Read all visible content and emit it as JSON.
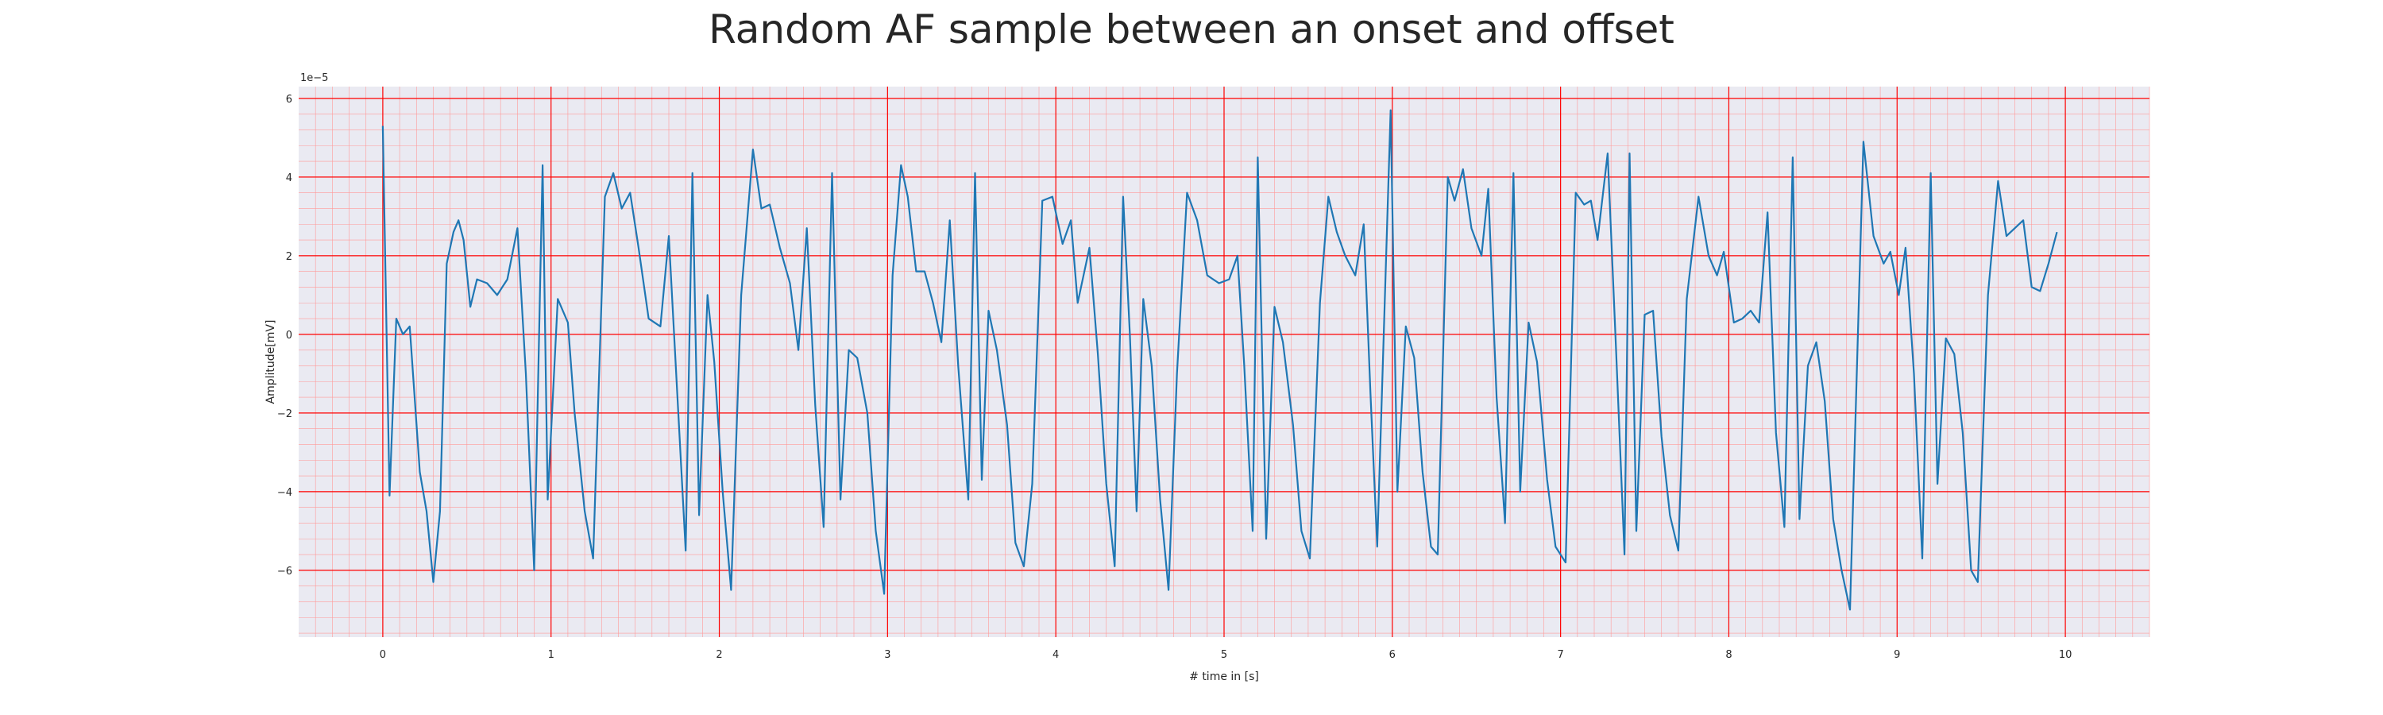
{
  "chart_data": {
    "type": "line",
    "title": "Random AF sample between an onset and offset",
    "xlabel": "# time in [s]",
    "ylabel": "Amplitude[mV]",
    "y_offset_label": "1e−5",
    "xlim": [
      -0.5,
      10.5
    ],
    "ylim": [
      -7.7,
      6.3
    ],
    "x_ticks": [
      0,
      1,
      2,
      3,
      4,
      5,
      6,
      7,
      8,
      9,
      10
    ],
    "y_ticks": [
      6,
      4,
      2,
      0,
      -2,
      -4,
      -6
    ],
    "x_tick_labels": [
      "0",
      "1",
      "2",
      "3",
      "4",
      "5",
      "6",
      "7",
      "8",
      "9",
      "10"
    ],
    "y_tick_labels": [
      "6",
      "4",
      "2",
      "0",
      "−2",
      "−4",
      "−6"
    ],
    "grid": true,
    "colors": {
      "background": "#eaeaf2",
      "major_grid": "#ff0000",
      "minor_grid": "#ff9999",
      "line": "#1f77b4"
    },
    "series": [
      {
        "values": [
          [
            0.0,
            5.3
          ],
          [
            0.04,
            -4.1
          ],
          [
            0.08,
            0.4
          ],
          [
            0.12,
            0.0
          ],
          [
            0.16,
            0.2
          ],
          [
            0.22,
            -3.5
          ],
          [
            0.26,
            -4.5
          ],
          [
            0.3,
            -6.3
          ],
          [
            0.34,
            -4.5
          ],
          [
            0.38,
            1.8
          ],
          [
            0.42,
            2.6
          ],
          [
            0.45,
            2.9
          ],
          [
            0.48,
            2.4
          ],
          [
            0.52,
            0.7
          ],
          [
            0.56,
            1.4
          ],
          [
            0.62,
            1.3
          ],
          [
            0.68,
            1.0
          ],
          [
            0.74,
            1.4
          ],
          [
            0.8,
            2.7
          ],
          [
            0.85,
            -1.0
          ],
          [
            0.9,
            -6.0
          ],
          [
            0.95,
            4.3
          ],
          [
            0.98,
            -4.2
          ],
          [
            1.04,
            0.9
          ],
          [
            1.1,
            0.3
          ],
          [
            1.14,
            -2.0
          ],
          [
            1.2,
            -4.5
          ],
          [
            1.25,
            -5.7
          ],
          [
            1.32,
            3.5
          ],
          [
            1.37,
            4.1
          ],
          [
            1.42,
            3.2
          ],
          [
            1.47,
            3.6
          ],
          [
            1.52,
            2.2
          ],
          [
            1.58,
            0.4
          ],
          [
            1.65,
            0.2
          ],
          [
            1.7,
            2.5
          ],
          [
            1.75,
            -1.5
          ],
          [
            1.8,
            -5.5
          ],
          [
            1.84,
            4.1
          ],
          [
            1.88,
            -4.6
          ],
          [
            1.93,
            1.0
          ],
          [
            1.97,
            -0.7
          ],
          [
            2.02,
            -4.0
          ],
          [
            2.07,
            -6.5
          ],
          [
            2.13,
            1.0
          ],
          [
            2.2,
            4.7
          ],
          [
            2.25,
            3.2
          ],
          [
            2.3,
            3.3
          ],
          [
            2.36,
            2.2
          ],
          [
            2.42,
            1.3
          ],
          [
            2.47,
            -0.4
          ],
          [
            2.52,
            2.7
          ],
          [
            2.57,
            -1.8
          ],
          [
            2.62,
            -4.9
          ],
          [
            2.67,
            4.1
          ],
          [
            2.72,
            -4.2
          ],
          [
            2.77,
            -0.4
          ],
          [
            2.82,
            -0.6
          ],
          [
            2.88,
            -2.0
          ],
          [
            2.93,
            -5.0
          ],
          [
            2.98,
            -6.6
          ],
          [
            3.03,
            1.5
          ],
          [
            3.08,
            4.3
          ],
          [
            3.12,
            3.5
          ],
          [
            3.17,
            1.6
          ],
          [
            3.22,
            1.6
          ],
          [
            3.27,
            0.8
          ],
          [
            3.32,
            -0.2
          ],
          [
            3.37,
            2.9
          ],
          [
            3.42,
            -0.8
          ],
          [
            3.48,
            -4.2
          ],
          [
            3.52,
            4.1
          ],
          [
            3.56,
            -3.7
          ],
          [
            3.6,
            0.6
          ],
          [
            3.65,
            -0.4
          ],
          [
            3.71,
            -2.3
          ],
          [
            3.76,
            -5.3
          ],
          [
            3.81,
            -5.9
          ],
          [
            3.86,
            -3.8
          ],
          [
            3.92,
            3.4
          ],
          [
            3.98,
            3.5
          ],
          [
            4.04,
            2.3
          ],
          [
            4.09,
            2.9
          ],
          [
            4.13,
            0.8
          ],
          [
            4.2,
            2.2
          ],
          [
            4.25,
            -0.5
          ],
          [
            4.3,
            -3.8
          ],
          [
            4.35,
            -5.9
          ],
          [
            4.4,
            3.5
          ],
          [
            4.44,
            0.0
          ],
          [
            4.48,
            -4.5
          ],
          [
            4.52,
            0.9
          ],
          [
            4.57,
            -0.8
          ],
          [
            4.62,
            -4.2
          ],
          [
            4.67,
            -6.5
          ],
          [
            4.72,
            -1.0
          ],
          [
            4.78,
            3.6
          ],
          [
            4.84,
            2.9
          ],
          [
            4.9,
            1.5
          ],
          [
            4.97,
            1.3
          ],
          [
            5.03,
            1.4
          ],
          [
            5.08,
            2.0
          ],
          [
            5.12,
            -0.8
          ],
          [
            5.17,
            -5.0
          ],
          [
            5.2,
            4.5
          ],
          [
            5.25,
            -5.2
          ],
          [
            5.3,
            0.7
          ],
          [
            5.35,
            -0.2
          ],
          [
            5.41,
            -2.3
          ],
          [
            5.46,
            -5.0
          ],
          [
            5.51,
            -5.7
          ],
          [
            5.57,
            0.8
          ],
          [
            5.62,
            3.5
          ],
          [
            5.67,
            2.6
          ],
          [
            5.72,
            2.0
          ],
          [
            5.78,
            1.5
          ],
          [
            5.83,
            2.8
          ],
          [
            5.87,
            -1.5
          ],
          [
            5.91,
            -5.4
          ],
          [
            5.99,
            5.7
          ],
          [
            6.03,
            -4.0
          ],
          [
            6.08,
            0.2
          ],
          [
            6.13,
            -0.6
          ],
          [
            6.18,
            -3.5
          ],
          [
            6.23,
            -5.4
          ],
          [
            6.27,
            -5.6
          ],
          [
            6.33,
            4.0
          ],
          [
            6.37,
            3.4
          ],
          [
            6.42,
            4.2
          ],
          [
            6.47,
            2.7
          ],
          [
            6.53,
            2.0
          ],
          [
            6.57,
            3.7
          ],
          [
            6.62,
            -1.6
          ],
          [
            6.67,
            -4.8
          ],
          [
            6.72,
            4.1
          ],
          [
            6.76,
            -4.0
          ],
          [
            6.81,
            0.3
          ],
          [
            6.86,
            -0.7
          ],
          [
            6.92,
            -3.7
          ],
          [
            6.97,
            -5.4
          ],
          [
            7.03,
            -5.8
          ],
          [
            7.09,
            3.6
          ],
          [
            7.14,
            3.3
          ],
          [
            7.18,
            3.4
          ],
          [
            7.22,
            2.4
          ],
          [
            7.28,
            4.6
          ],
          [
            7.33,
            -0.4
          ],
          [
            7.38,
            -5.6
          ],
          [
            7.41,
            4.6
          ],
          [
            7.45,
            -5.0
          ],
          [
            7.5,
            0.5
          ],
          [
            7.55,
            0.6
          ],
          [
            7.6,
            -2.6
          ],
          [
            7.65,
            -4.6
          ],
          [
            7.7,
            -5.5
          ],
          [
            7.75,
            0.9
          ],
          [
            7.82,
            3.5
          ],
          [
            7.88,
            2.0
          ],
          [
            7.93,
            1.5
          ],
          [
            7.97,
            2.1
          ],
          [
            8.03,
            0.3
          ],
          [
            8.08,
            0.4
          ],
          [
            8.13,
            0.6
          ],
          [
            8.18,
            0.3
          ],
          [
            8.23,
            3.1
          ],
          [
            8.28,
            -2.5
          ],
          [
            8.33,
            -4.9
          ],
          [
            8.38,
            4.5
          ],
          [
            8.42,
            -4.7
          ],
          [
            8.47,
            -0.8
          ],
          [
            8.52,
            -0.2
          ],
          [
            8.57,
            -1.7
          ],
          [
            8.62,
            -4.7
          ],
          [
            8.67,
            -6.0
          ],
          [
            8.72,
            -7.0
          ],
          [
            8.8,
            4.9
          ],
          [
            8.86,
            2.5
          ],
          [
            8.92,
            1.8
          ],
          [
            8.96,
            2.1
          ],
          [
            9.01,
            1.0
          ],
          [
            9.05,
            2.2
          ],
          [
            9.1,
            -1.0
          ],
          [
            9.15,
            -5.7
          ],
          [
            9.2,
            4.1
          ],
          [
            9.24,
            -3.8
          ],
          [
            9.29,
            -0.1
          ],
          [
            9.34,
            -0.5
          ],
          [
            9.39,
            -2.5
          ],
          [
            9.44,
            -6.0
          ],
          [
            9.48,
            -6.3
          ],
          [
            9.54,
            1.0
          ],
          [
            9.6,
            3.9
          ],
          [
            9.65,
            2.5
          ],
          [
            9.7,
            2.7
          ],
          [
            9.75,
            2.9
          ],
          [
            9.8,
            1.2
          ],
          [
            9.85,
            1.1
          ],
          [
            9.9,
            1.8
          ],
          [
            9.95,
            2.6
          ]
        ]
      }
    ]
  }
}
